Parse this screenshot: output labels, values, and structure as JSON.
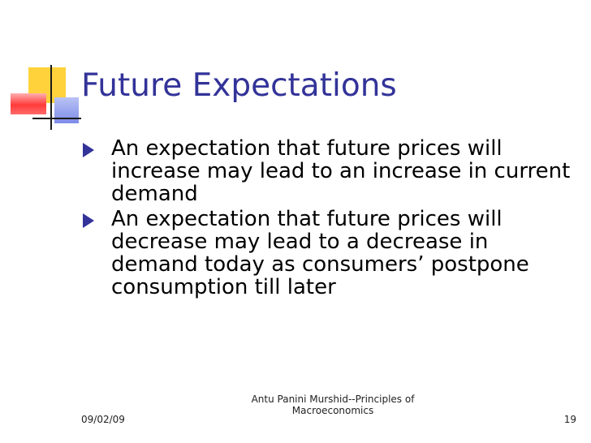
{
  "slide": {
    "title": "Future Expectations",
    "bullets": [
      "An expectation that future prices will increase may lead to an increase in current demand",
      "An expectation that future prices will decrease may lead to a decrease in demand today as consumers’ postpone consumption till later"
    ]
  },
  "footer": {
    "date": "09/02/09",
    "author_line1": "Antu Panini Murshid--Principles of",
    "author_line2": "Macroeconomics",
    "page_number": "19"
  },
  "colors": {
    "title": "#333399",
    "bullet_marker": "#333399",
    "deco_yellow": "#ffd23c",
    "deco_red": "#ff3a3a",
    "deco_blue": "#7c8be8"
  },
  "icons": {
    "bullet": "right-triangle-bullet-icon",
    "logo": "colored-squares-logo-icon"
  }
}
